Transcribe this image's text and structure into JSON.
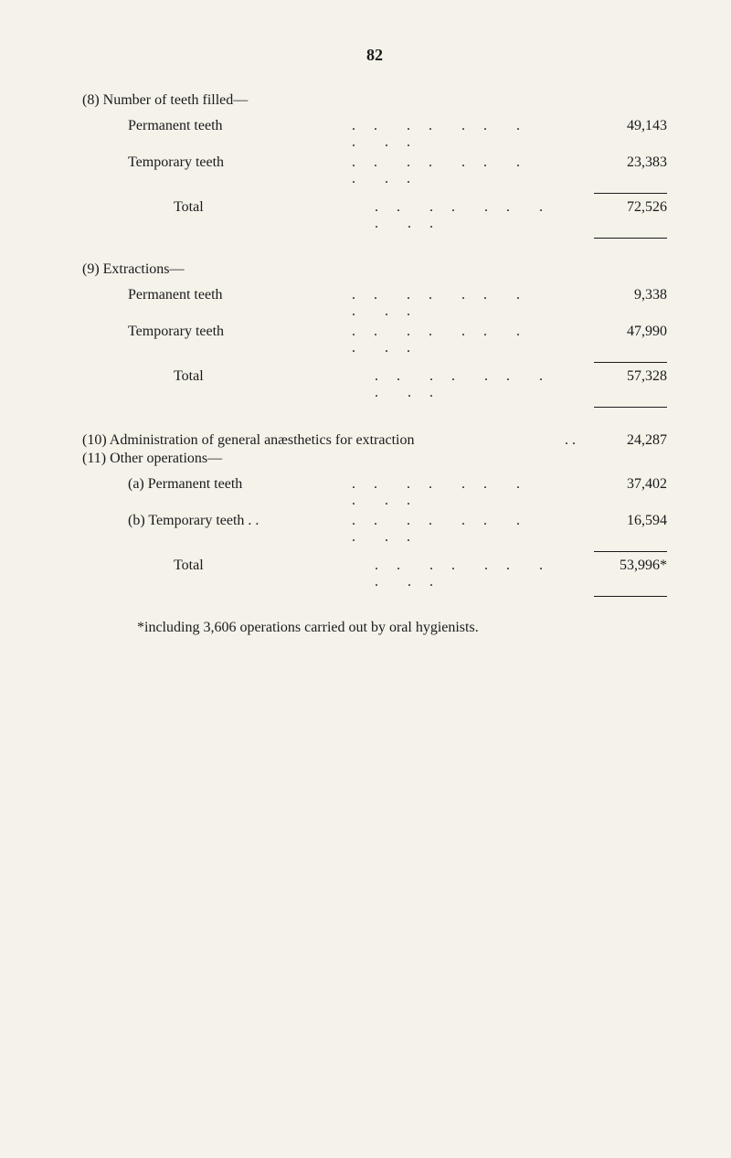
{
  "page_number": "82",
  "section8": {
    "title": "(8) Number of teeth filled—",
    "rows": [
      {
        "label": "Permanent teeth",
        "value": "49,143"
      },
      {
        "label": "Temporary teeth",
        "value": "23,383"
      }
    ],
    "total_label": "Total",
    "total_value": "72,526"
  },
  "section9": {
    "title": "(9) Extractions—",
    "rows": [
      {
        "label": "Permanent teeth",
        "value": "9,338"
      },
      {
        "label": "Temporary teeth",
        "value": "47,990"
      }
    ],
    "total_label": "Total",
    "total_value": "57,328"
  },
  "section10": {
    "title": "(10) Administration of general anæsthetics for extraction",
    "value": "24,287"
  },
  "section11": {
    "title": "(11) Other operations—",
    "rows": [
      {
        "label": "(a) Permanent teeth",
        "value": "37,402"
      },
      {
        "label": "(b) Temporary teeth . .",
        "value": "16,594"
      }
    ],
    "total_label": "Total",
    "total_value": "53,996*"
  },
  "footnote": "*including 3,606 operations carried out by oral hygienists.",
  "dots": ". .",
  "dots_long": ". . . . . . . . . ."
}
